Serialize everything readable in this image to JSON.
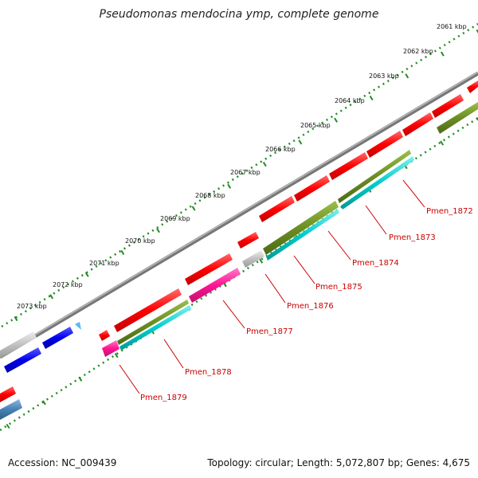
{
  "title": "Pseudomonas mendocina ymp, complete genome",
  "footer": {
    "accession": "Accession: NC_009439",
    "summary": "Topology: circular; Length: 5,072,807 bp; Genes: 4,675"
  },
  "ticks": [
    "2061 kbp",
    "2062 kbp",
    "2063 kbp",
    "2064 kbp",
    "2065 kbp",
    "2066 kbp",
    "2067 kbp",
    "2068 kbp",
    "2069 kbp",
    "2070 kbp",
    "2071 kbp",
    "2072 kbp",
    "2073 kbp"
  ],
  "gene_labels": [
    "Pmen_1872",
    "Pmen_1873",
    "Pmen_1874",
    "Pmen_1875",
    "Pmen_1876",
    "Pmen_1877",
    "Pmen_1878",
    "Pmen_1879"
  ],
  "colors": {
    "red": "#ff0000",
    "olive": "#6b8e23",
    "cyan": "#00cccc",
    "magenta": "#ff1493",
    "gray": "#c0c0c0",
    "blue": "#0000ee",
    "steel": "#4682b4",
    "label": "#cc0000",
    "tick_dots": "#228b22"
  }
}
